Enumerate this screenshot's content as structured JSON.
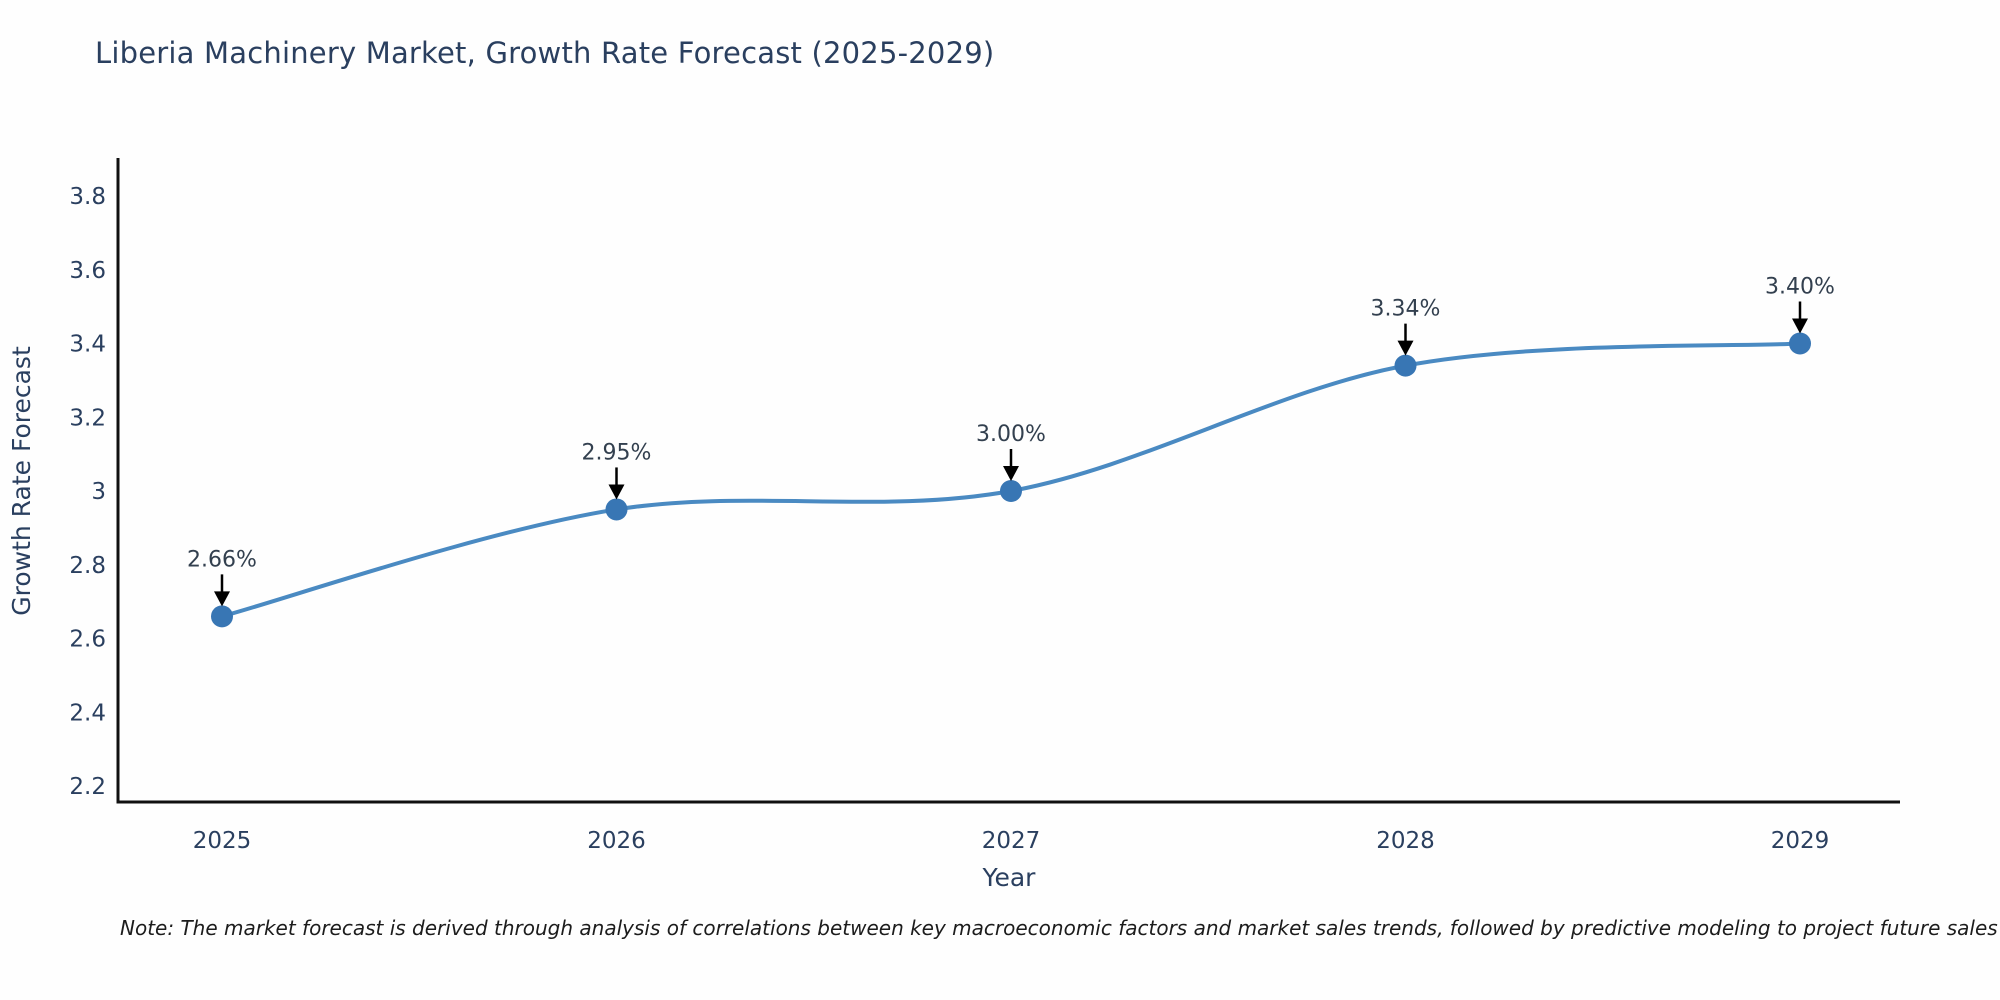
{
  "chart_data": {
    "type": "line",
    "title": "Liberia Machinery Market, Growth Rate Forecast (2025-2029)",
    "xlabel": "Year",
    "ylabel": "Growth Rate Forecast",
    "x": [
      2025,
      2026,
      2027,
      2028,
      2029
    ],
    "series": [
      {
        "name": "Growth Rate Forecast",
        "values": [
          2.66,
          2.95,
          3.0,
          3.34,
          3.4
        ]
      }
    ],
    "point_labels": [
      "2.66%",
      "2.95%",
      "3.00%",
      "3.34%",
      "3.40%"
    ],
    "xtick_labels": [
      "2025",
      "2026",
      "2027",
      "2028",
      "2029"
    ],
    "ytick_labels": [
      "2.2",
      "2.4",
      "2.6",
      "2.8",
      "3",
      "3.2",
      "3.4",
      "3.6",
      "3.8"
    ],
    "ytick_values": [
      2.2,
      2.4,
      2.6,
      2.8,
      3.0,
      3.2,
      3.4,
      3.6,
      3.8
    ],
    "ylim": [
      2.16,
      3.9
    ],
    "xlim": [
      2024.74,
      2029.25
    ],
    "grid": false,
    "legend_position": "none",
    "curve": "spline",
    "line_color": "#4a8ac2",
    "marker_color": "#3876b4",
    "axis_line_color": "#111111",
    "annotation_arrow_color": "#000000",
    "text_color": "#2a3f5f"
  },
  "note": "Note: The market forecast is derived through analysis of correlations between key macroeconomic factors and market sales trends, followed by predictive modeling to project future sales"
}
